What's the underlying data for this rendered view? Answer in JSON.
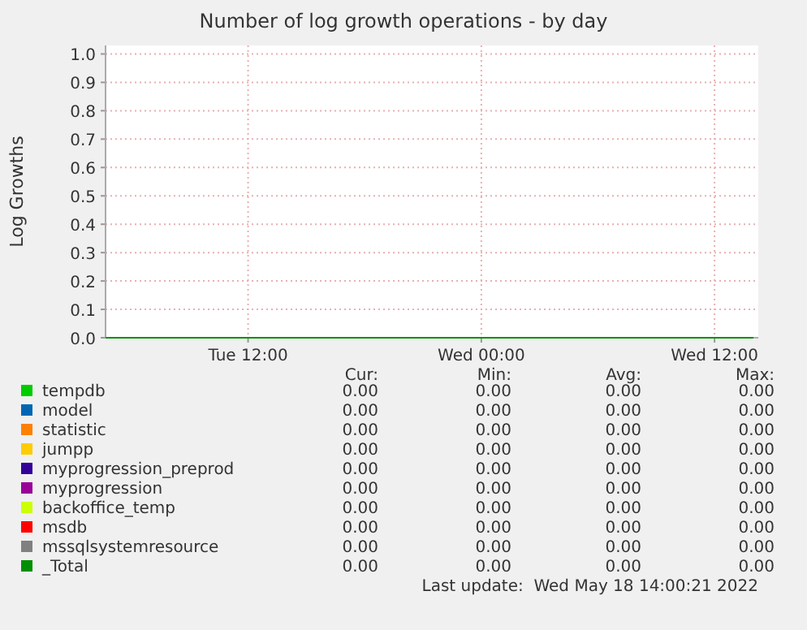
{
  "chart_data": {
    "type": "line",
    "title": "Number of log growth operations - by day",
    "ylabel": "Log Growths",
    "x": [
      "2022-05-17T04:40",
      "2022-05-18T14:00"
    ],
    "xlim": [
      "2022-05-17T04:40",
      "2022-05-18T14:15"
    ],
    "xticks": [
      {
        "value": "2022-05-17T12:00",
        "label": "Tue 12:00"
      },
      {
        "value": "2022-05-18T00:00",
        "label": "Wed 00:00"
      },
      {
        "value": "2022-05-18T12:00",
        "label": "Wed 12:00"
      }
    ],
    "ylim": [
      0,
      1.03
    ],
    "yticks": [
      {
        "value": 0,
        "label": "0.0"
      },
      {
        "value": 0.1,
        "label": "0.1"
      },
      {
        "value": 0.2,
        "label": "0.2"
      },
      {
        "value": 0.3,
        "label": "0.3"
      },
      {
        "value": 0.4,
        "label": "0.4"
      },
      {
        "value": 0.5,
        "label": "0.5"
      },
      {
        "value": 0.6,
        "label": "0.6"
      },
      {
        "value": 0.7,
        "label": "0.7"
      },
      {
        "value": 0.8,
        "label": "0.8"
      },
      {
        "value": 0.9,
        "label": "0.9"
      },
      {
        "value": 1,
        "label": "1.0"
      }
    ],
    "grid": true,
    "legend": "bottom",
    "series": [
      {
        "name": "tempdb",
        "color": "#00cc00",
        "values": [
          null,
          null
        ]
      },
      {
        "name": "model",
        "color": "#0066b3",
        "values": [
          null,
          null
        ]
      },
      {
        "name": "statistic",
        "color": "#ff8000",
        "values": [
          null,
          null
        ]
      },
      {
        "name": "jumpp",
        "color": "#ffcc00",
        "values": [
          null,
          null
        ]
      },
      {
        "name": "myprogression_preprod",
        "color": "#330099",
        "values": [
          null,
          null
        ]
      },
      {
        "name": "myprogression",
        "color": "#990099",
        "values": [
          null,
          null
        ]
      },
      {
        "name": "backoffice_temp",
        "color": "#ccff00",
        "values": [
          null,
          null
        ]
      },
      {
        "name": "msdb",
        "color": "#ff0000",
        "values": [
          null,
          null
        ]
      },
      {
        "name": "mssqlsystemresource",
        "color": "#808080",
        "values": [
          null,
          null
        ]
      },
      {
        "name": "_Total",
        "color": "#008f00",
        "values": [
          0,
          0
        ]
      }
    ],
    "annotations": [
      "Cur:",
      "Min:",
      "Avg:",
      "Max:",
      "0.00",
      "0.00",
      "0.00",
      "0.00",
      "0.00",
      "0.00",
      "0.00",
      "0.00",
      "0.00",
      "0.00",
      "0.00",
      "0.00",
      "0.00",
      "0.00",
      "0.00",
      "0.00",
      "0.00",
      "0.00",
      "0.00",
      "0.00",
      "0.00",
      "0.00",
      "0.00",
      "0.00",
      "0.00",
      "0.00",
      "0.00",
      "0.00",
      "0.00",
      "0.00",
      "0.00",
      "0.00",
      "0.00",
      "0.00",
      "0.00",
      "0.00",
      "0.00",
      "0.00",
      "0.00",
      "0.00",
      "Last update:  Wed May 18 14:00:21 2022"
    ]
  }
}
